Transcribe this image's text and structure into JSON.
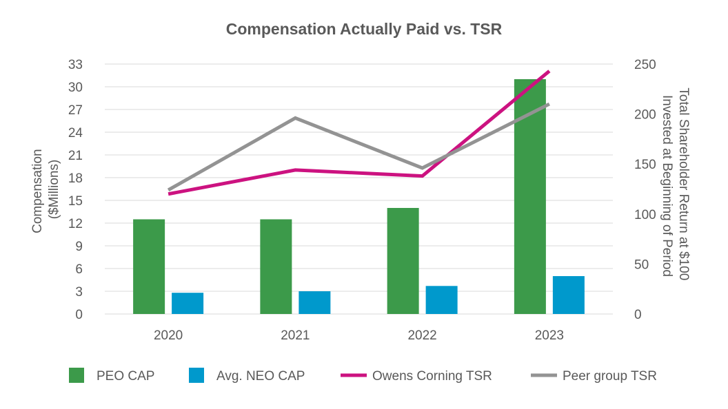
{
  "chart_data": {
    "type": "bar",
    "title": "Compensation Actually Paid vs. TSR",
    "categories": [
      "2020",
      "2021",
      "2022",
      "2023"
    ],
    "y_left": {
      "label_lines": [
        "Compensation",
        "($Millions)"
      ],
      "ticks": [
        "0",
        "3",
        "6",
        "9",
        "12",
        "15",
        "18",
        "21",
        "24",
        "27",
        "30",
        "33"
      ],
      "ylim": [
        0,
        33
      ]
    },
    "y_right": {
      "label_lines": [
        "Total Shareholder Return at $100",
        "Invested at Beginning of Period"
      ],
      "ticks": [
        "0",
        "50",
        "100",
        "150",
        "200",
        "250"
      ],
      "ylim": [
        0,
        250
      ]
    },
    "grid": true,
    "legend_position": "bottom",
    "series": [
      {
        "name": "PEO CAP",
        "kind": "bar",
        "axis": "left",
        "color": "#3C9A4A",
        "values": [
          12.5,
          12.5,
          14.0,
          31.0
        ]
      },
      {
        "name": "Avg. NEO CAP",
        "kind": "bar",
        "axis": "left",
        "color": "#0099CC",
        "values": [
          2.8,
          3.0,
          3.7,
          5.0
        ]
      },
      {
        "name": "Owens Corning TSR",
        "kind": "line",
        "axis": "right",
        "color": "#CC1280",
        "values": [
          120,
          144,
          138,
          243
        ]
      },
      {
        "name": "Peer group TSR",
        "kind": "line",
        "axis": "right",
        "color": "#939393",
        "values": [
          124,
          196,
          146,
          210
        ]
      }
    ]
  }
}
